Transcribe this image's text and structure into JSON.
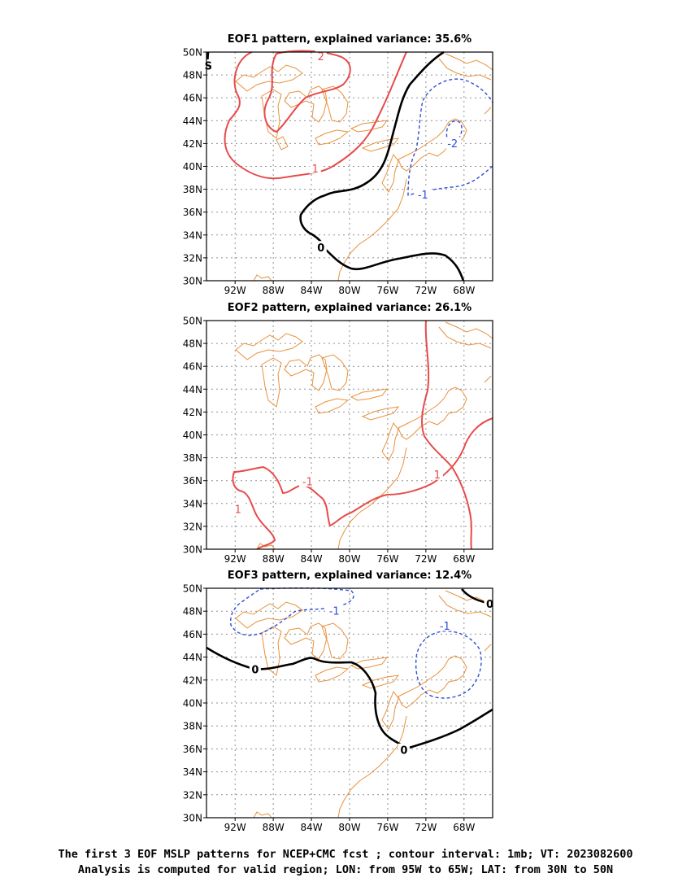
{
  "panels": [
    {
      "title": "EOF1 pattern, explained variance: 35.6%",
      "contour_labels": [
        {
          "text": "2",
          "lon": -83.0,
          "lat": 49.6,
          "color": "#e84a4a"
        },
        {
          "text": "1",
          "lon": -83.6,
          "lat": 39.8,
          "color": "#e84a4a"
        },
        {
          "text": "0",
          "lon": -83.0,
          "lat": 32.9,
          "color": "#000000"
        },
        {
          "text": "S",
          "lon": -94.8,
          "lat": 48.8,
          "color": "#000000"
        },
        {
          "text": "-2",
          "lon": -69.2,
          "lat": 42.0,
          "color": "#2f4fd8"
        },
        {
          "text": "-1",
          "lon": -72.3,
          "lat": 37.5,
          "color": "#2f4fd8"
        }
      ]
    },
    {
      "title": "EOF2 pattern, explained variance: 26.1%",
      "contour_labels": [
        {
          "text": "-1",
          "lon": -84.4,
          "lat": 35.9,
          "color": "#e84a4a"
        },
        {
          "text": "1",
          "lon": -70.8,
          "lat": 36.5,
          "color": "#e84a4a"
        },
        {
          "text": "1",
          "lon": -91.7,
          "lat": 33.5,
          "color": "#e84a4a"
        }
      ]
    },
    {
      "title": "EOF3 pattern, explained variance: 12.4%",
      "contour_labels": [
        {
          "text": "-1",
          "lon": -81.6,
          "lat": 48.0,
          "color": "#2f4fd8"
        },
        {
          "text": "-1",
          "lon": -70.0,
          "lat": 46.7,
          "color": "#2f4fd8"
        },
        {
          "text": "0",
          "lon": -89.9,
          "lat": 42.9,
          "color": "#000000"
        },
        {
          "text": "0",
          "lon": -74.3,
          "lat": 35.9,
          "color": "#000000"
        },
        {
          "text": "0",
          "lon": -65.3,
          "lat": 48.6,
          "color": "#000000"
        }
      ]
    }
  ],
  "axes": {
    "lon_range": [
      -95,
      -65
    ],
    "lat_range": [
      30,
      50
    ],
    "lon_ticks": [
      "92W",
      "88W",
      "84W",
      "80W",
      "76W",
      "72W",
      "68W"
    ],
    "lat_ticks": [
      "30N",
      "32N",
      "34N",
      "36N",
      "38N",
      "40N",
      "42N",
      "44N",
      "46N",
      "48N",
      "50N"
    ],
    "grid": "dotted"
  },
  "colors": {
    "coast": "#e8913c",
    "positive_contour": "#e84a4a",
    "negative_contour": "#2f4fd8",
    "zero_contour": "#000000"
  },
  "caption": {
    "line1": "The first 3 EOF MSLP patterns for NCEP+CMC fcst ; contour interval: 1mb; VT: 2023082600",
    "line2": "Analysis is computed for valid region; LON: from 95W to 65W; LAT: from 30N to 50N"
  }
}
